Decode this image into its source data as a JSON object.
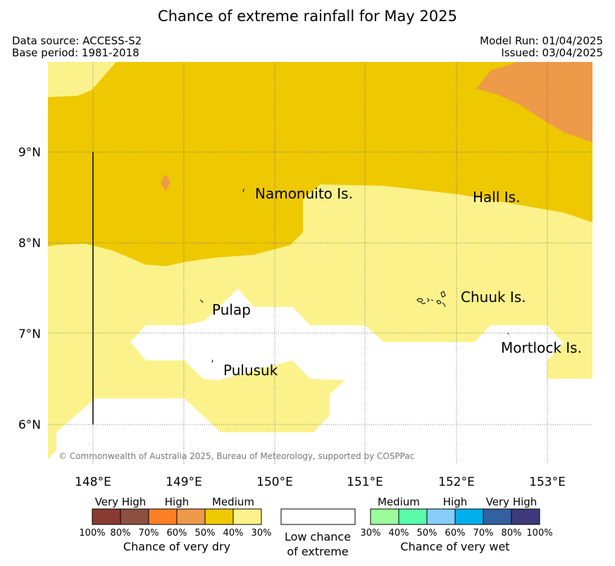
{
  "title": "Chance of extreme rainfall for May 2025",
  "meta": {
    "data_source": "Data source: ACCESS-S2",
    "base_period": "Base period: 1981-2018",
    "model_run": "Model Run: 01/04/2025",
    "issued": "Issued: 03/04/2025"
  },
  "map": {
    "lat_labels": [
      "9°N",
      "8°N",
      "7°N",
      "6°N"
    ],
    "lon_labels": [
      "148°E",
      "149°E",
      "150°E",
      "151°E",
      "152°E",
      "153°E"
    ],
    "places": {
      "namonuito": "Namonuito Is.",
      "hall": "Hall Is.",
      "pulap": "Pulap",
      "chuuk": "Chuuk Is.",
      "pulusuk": "Pulusuk",
      "mortlock": "Mortlock Is."
    },
    "copyright": "© Commonwealth of Australia 2025, Bureau of Meteorology, supported by COSPPac"
  },
  "legend": {
    "dry": {
      "categories": [
        "Very High",
        "High",
        "Medium"
      ],
      "percentages": [
        "100%",
        "80%",
        "70%",
        "60%",
        "50%",
        "40%",
        "30%"
      ],
      "colors": [
        "#8b3a32",
        "#8b5040",
        "#ff7f27",
        "#ed9a49",
        "#eec800",
        "#fcf28b"
      ],
      "caption": "Chance of very dry"
    },
    "low": {
      "line1": "Low chance",
      "line2": "of extreme"
    },
    "wet": {
      "categories": [
        "Medium",
        "High",
        "Very High"
      ],
      "percentages": [
        "30%",
        "40%",
        "50%",
        "60%",
        "70%",
        "80%",
        "100%"
      ],
      "colors": [
        "#9bfc9b",
        "#59fcab",
        "#87cdf9",
        "#00b0ec",
        "#33609f",
        "#3c3a7a"
      ],
      "caption": "Chance of very wet"
    }
  }
}
